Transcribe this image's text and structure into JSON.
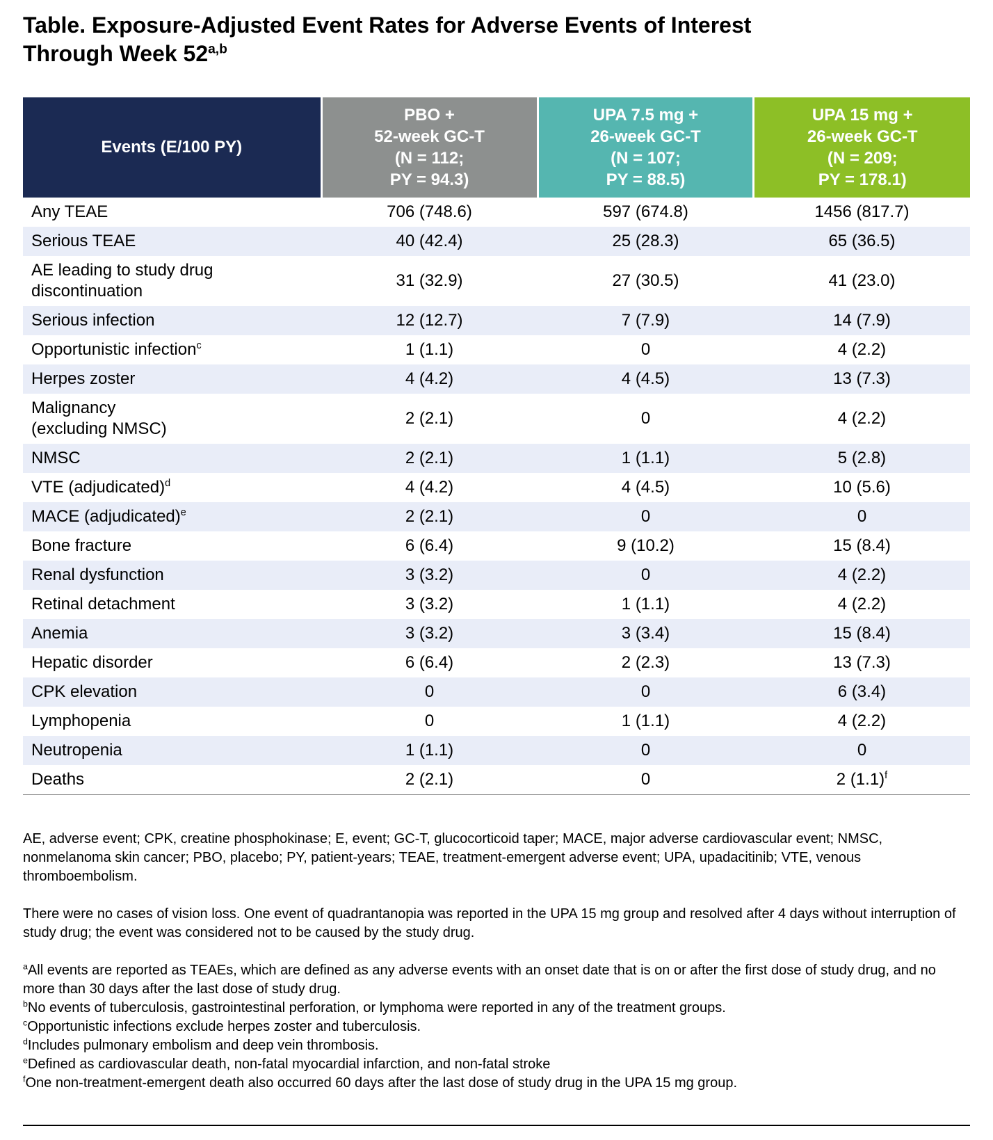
{
  "title": {
    "text": "Table. Exposure-Adjusted Event Rates for Adverse Events of Interest\nThrough Week 52",
    "superscript": "a,b"
  },
  "colors": {
    "events_header_bg": "#1b2a53",
    "pbo_header_bg": "#8d908f",
    "upa75_header_bg": "#55b6b0",
    "upa15_header_bg": "#8dbf26",
    "row_stripe_bg": "#e9edf8",
    "row_base_bg": "#ffffff",
    "header_text": "#ffffff"
  },
  "table": {
    "columns": [
      {
        "id": "events",
        "label": "Events (E/100 PY)"
      },
      {
        "id": "pbo",
        "label": "PBO +\n52-week GC-T\n(N = 112;\nPY = 94.3)"
      },
      {
        "id": "upa75",
        "label": "UPA 7.5 mg +\n26-week GC-T\n(N = 107;\nPY = 88.5)"
      },
      {
        "id": "upa15",
        "label": "UPA 15 mg +\n26-week GC-T\n(N = 209;\nPY = 178.1)"
      }
    ],
    "rows": [
      {
        "event": "Any TEAE",
        "event_sup": "",
        "values": [
          "706 (748.6)",
          "597 (674.8)",
          "1456 (817.7)"
        ],
        "value_sups": [
          "",
          "",
          ""
        ]
      },
      {
        "event": "Serious TEAE",
        "event_sup": "",
        "values": [
          "40 (42.4)",
          "25 (28.3)",
          "65 (36.5)"
        ],
        "value_sups": [
          "",
          "",
          ""
        ]
      },
      {
        "event": "AE leading to study drug\ndiscontinuation",
        "event_sup": "",
        "values": [
          "31 (32.9)",
          "27 (30.5)",
          "41 (23.0)"
        ],
        "value_sups": [
          "",
          "",
          ""
        ]
      },
      {
        "event": "Serious infection",
        "event_sup": "",
        "values": [
          "12 (12.7)",
          "7 (7.9)",
          "14 (7.9)"
        ],
        "value_sups": [
          "",
          "",
          ""
        ]
      },
      {
        "event": "Opportunistic infection",
        "event_sup": "c",
        "values": [
          "1 (1.1)",
          "0",
          "4 (2.2)"
        ],
        "value_sups": [
          "",
          "",
          ""
        ]
      },
      {
        "event": "Herpes zoster",
        "event_sup": "",
        "values": [
          "4 (4.2)",
          "4 (4.5)",
          "13 (7.3)"
        ],
        "value_sups": [
          "",
          "",
          ""
        ]
      },
      {
        "event": "Malignancy\n(excluding NMSC)",
        "event_sup": "",
        "values": [
          "2 (2.1)",
          "0",
          "4 (2.2)"
        ],
        "value_sups": [
          "",
          "",
          ""
        ]
      },
      {
        "event": "NMSC",
        "event_sup": "",
        "values": [
          "2 (2.1)",
          "1 (1.1)",
          "5 (2.8)"
        ],
        "value_sups": [
          "",
          "",
          ""
        ]
      },
      {
        "event": "VTE (adjudicated)",
        "event_sup": "d",
        "values": [
          "4 (4.2)",
          "4 (4.5)",
          "10 (5.6)"
        ],
        "value_sups": [
          "",
          "",
          ""
        ]
      },
      {
        "event": "MACE (adjudicated)",
        "event_sup": "e",
        "values": [
          "2 (2.1)",
          "0",
          "0"
        ],
        "value_sups": [
          "",
          "",
          ""
        ]
      },
      {
        "event": "Bone fracture",
        "event_sup": "",
        "values": [
          "6 (6.4)",
          "9 (10.2)",
          "15 (8.4)"
        ],
        "value_sups": [
          "",
          "",
          ""
        ]
      },
      {
        "event": "Renal dysfunction",
        "event_sup": "",
        "values": [
          "3 (3.2)",
          "0",
          "4 (2.2)"
        ],
        "value_sups": [
          "",
          "",
          ""
        ]
      },
      {
        "event": "Retinal detachment",
        "event_sup": "",
        "values": [
          "3 (3.2)",
          "1 (1.1)",
          "4 (2.2)"
        ],
        "value_sups": [
          "",
          "",
          ""
        ]
      },
      {
        "event": "Anemia",
        "event_sup": "",
        "values": [
          "3 (3.2)",
          "3 (3.4)",
          "15 (8.4)"
        ],
        "value_sups": [
          "",
          "",
          ""
        ]
      },
      {
        "event": "Hepatic disorder",
        "event_sup": "",
        "values": [
          "6 (6.4)",
          "2 (2.3)",
          "13 (7.3)"
        ],
        "value_sups": [
          "",
          "",
          ""
        ]
      },
      {
        "event": "CPK elevation",
        "event_sup": "",
        "values": [
          "0",
          "0",
          "6 (3.4)"
        ],
        "value_sups": [
          "",
          "",
          ""
        ]
      },
      {
        "event": "Lymphopenia",
        "event_sup": "",
        "values": [
          "0",
          "1 (1.1)",
          "4 (2.2)"
        ],
        "value_sups": [
          "",
          "",
          ""
        ]
      },
      {
        "event": "Neutropenia",
        "event_sup": "",
        "values": [
          "1 (1.1)",
          "0",
          "0"
        ],
        "value_sups": [
          "",
          "",
          ""
        ]
      },
      {
        "event": "Deaths",
        "event_sup": "",
        "values": [
          "2 (2.1)",
          "0",
          "2 (1.1)"
        ],
        "value_sups": [
          "",
          "",
          "f"
        ]
      }
    ]
  },
  "notes": {
    "abbreviations": "AE, adverse event; CPK, creatine phosphokinase; E, event; GC-T, glucocorticoid taper; MACE, major adverse cardiovascular event; NMSC, nonmelanoma skin cancer; PBO, placebo; PY, patient-years; TEAE, treatment-emergent adverse event; UPA, upadacitinib; VTE, venous thromboembolism.",
    "vision_loss": "There were no cases of vision loss. One event of quadrantanopia was reported in the UPA 15 mg group and resolved after 4 days without interruption of study drug; the event was considered not to be caused by the study drug.",
    "footnotes": [
      {
        "sup": "a",
        "text": "All events are reported as TEAEs, which are defined as any adverse events with an onset date that is on or after the first dose of study drug, and no more than 30 days after the last dose of study drug."
      },
      {
        "sup": "b",
        "text": "No events of tuberculosis, gastrointestinal perforation, or lymphoma were reported in any of the treatment groups."
      },
      {
        "sup": "c",
        "text": "Opportunistic infections exclude herpes zoster and tuberculosis."
      },
      {
        "sup": "d",
        "text": "Includes pulmonary embolism and deep vein thrombosis."
      },
      {
        "sup": "e",
        "text": "Defined as cardiovascular death, non-fatal myocardial infarction, and non-fatal stroke"
      },
      {
        "sup": "f",
        "text": "One non-treatment-emergent death also occurred 60 days after the last dose of study drug in the UPA 15 mg group."
      }
    ]
  }
}
